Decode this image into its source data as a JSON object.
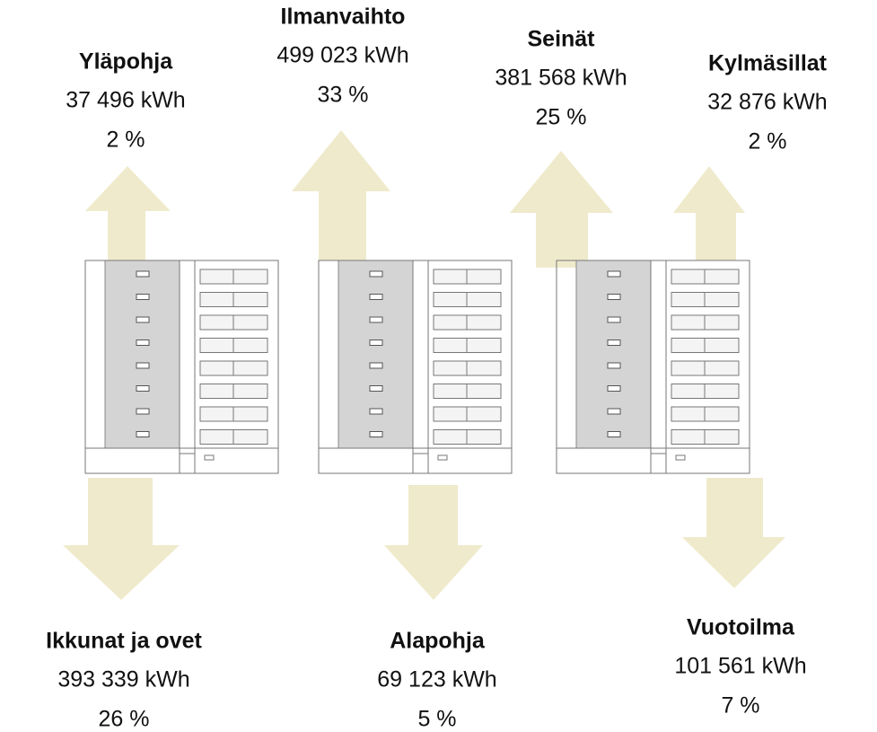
{
  "items": [
    {
      "name": "Yläpohja",
      "energy": "37 496 kWh",
      "share": "2 %"
    },
    {
      "name": "Ilmanvaihto",
      "energy": "499 023 kWh",
      "share": "33 %"
    },
    {
      "name": "Seinät",
      "energy": "381 568 kWh",
      "share": "25 %"
    },
    {
      "name": "Kylmäsillat",
      "energy": "32 876 kWh",
      "share": "2 %"
    },
    {
      "name": "Ikkunat ja ovet",
      "energy": "393 339 kWh",
      "share": "26 %"
    },
    {
      "name": "Alapohja",
      "energy": "69 123 kWh",
      "share": "5 %"
    },
    {
      "name": "Vuotoilma",
      "energy": "101 561 kWh",
      "share": "7 %"
    }
  ]
}
